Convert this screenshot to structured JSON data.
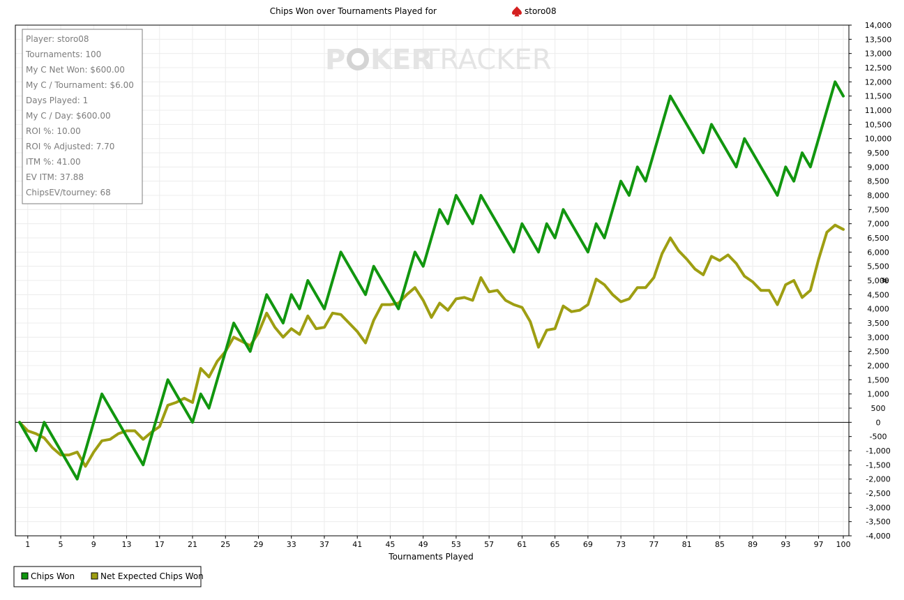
{
  "chart_data": {
    "type": "line",
    "title_prefix": "Chips Won over Tournaments Played for",
    "player_name": "storo08",
    "watermark": {
      "part1": "P",
      "part2": "KER",
      "part3": "TRACKER"
    },
    "xlabel": "Tournaments Played",
    "ylabel": "#",
    "xlim": [
      0,
      100
    ],
    "ylim": [
      -4000,
      14000
    ],
    "y_tick_step": 500,
    "x_ticks": [
      1,
      5,
      9,
      13,
      17,
      21,
      25,
      29,
      33,
      37,
      41,
      45,
      49,
      53,
      57,
      61,
      65,
      69,
      73,
      77,
      81,
      85,
      89,
      93,
      97,
      100
    ],
    "y_tick_labels": [
      "14,000",
      "13,500",
      "13,000",
      "12,500",
      "12,000",
      "11,500",
      "11,000",
      "10,500",
      "10,000",
      "9,500",
      "9,000",
      "8,500",
      "8,000",
      "7,500",
      "7,000",
      "6,500",
      "6,000",
      "5,500",
      "5,000",
      "4,500",
      "4,000",
      "3,500",
      "3,000",
      "2,500",
      "2,000",
      "1,500",
      "1,000",
      "500",
      "0",
      "-500",
      "-1,000",
      "-1,500",
      "-2,000",
      "-2,500",
      "-3,000",
      "-3,500",
      "-4,000"
    ],
    "grid": true,
    "legend_position": "bottom-left",
    "series": [
      {
        "name": "Chips Won",
        "color": "#11960f",
        "points": [
          [
            0,
            0
          ],
          [
            1,
            -500
          ],
          [
            2,
            -1000
          ],
          [
            3,
            0
          ],
          [
            7,
            -2000
          ],
          [
            10,
            1000
          ],
          [
            15,
            -1500
          ],
          [
            18,
            1500
          ],
          [
            21,
            0
          ],
          [
            22,
            1000
          ],
          [
            23,
            500
          ],
          [
            26,
            3500
          ],
          [
            28,
            2500
          ],
          [
            30,
            4500
          ],
          [
            32,
            3500
          ],
          [
            33,
            4500
          ],
          [
            34,
            4000
          ],
          [
            35,
            5000
          ],
          [
            37,
            4000
          ],
          [
            39,
            6000
          ],
          [
            42,
            4500
          ],
          [
            43,
            5500
          ],
          [
            46,
            4000
          ],
          [
            48,
            6000
          ],
          [
            49,
            5500
          ],
          [
            51,
            7500
          ],
          [
            52,
            7000
          ],
          [
            53,
            8000
          ],
          [
            55,
            7000
          ],
          [
            56,
            8000
          ],
          [
            60,
            6000
          ],
          [
            61,
            7000
          ],
          [
            63,
            6000
          ],
          [
            64,
            7000
          ],
          [
            65,
            6500
          ],
          [
            66,
            7500
          ],
          [
            69,
            6000
          ],
          [
            70,
            7000
          ],
          [
            71,
            6500
          ],
          [
            73,
            8500
          ],
          [
            74,
            8000
          ],
          [
            75,
            9000
          ],
          [
            76,
            8500
          ],
          [
            79,
            11500
          ],
          [
            83,
            9500
          ],
          [
            84,
            10500
          ],
          [
            87,
            9000
          ],
          [
            88,
            10000
          ],
          [
            92,
            8000
          ],
          [
            93,
            9000
          ],
          [
            94,
            8500
          ],
          [
            95,
            9500
          ],
          [
            96,
            9000
          ],
          [
            99,
            12000
          ],
          [
            100,
            11500
          ]
        ]
      },
      {
        "name": "Net Expected Chips Won",
        "color": "#9e9e12",
        "points": [
          [
            0,
            0
          ],
          [
            1,
            -300
          ],
          [
            2,
            -400
          ],
          [
            3,
            -550
          ],
          [
            4,
            -900
          ],
          [
            5,
            -1150
          ],
          [
            6,
            -1150
          ],
          [
            7,
            -1050
          ],
          [
            8,
            -1550
          ],
          [
            9,
            -1050
          ],
          [
            10,
            -650
          ],
          [
            11,
            -600
          ],
          [
            12,
            -400
          ],
          [
            13,
            -300
          ],
          [
            14,
            -300
          ],
          [
            15,
            -600
          ],
          [
            16,
            -350
          ],
          [
            17,
            -150
          ],
          [
            18,
            600
          ],
          [
            19,
            700
          ],
          [
            20,
            850
          ],
          [
            21,
            700
          ],
          [
            22,
            1900
          ],
          [
            23,
            1600
          ],
          [
            24,
            2150
          ],
          [
            25,
            2500
          ],
          [
            26,
            3000
          ],
          [
            27,
            2850
          ],
          [
            28,
            2700
          ],
          [
            29,
            3150
          ],
          [
            30,
            3850
          ],
          [
            31,
            3350
          ],
          [
            32,
            3000
          ],
          [
            33,
            3300
          ],
          [
            34,
            3100
          ],
          [
            35,
            3750
          ],
          [
            36,
            3300
          ],
          [
            37,
            3350
          ],
          [
            38,
            3850
          ],
          [
            39,
            3800
          ],
          [
            40,
            3500
          ],
          [
            41,
            3200
          ],
          [
            42,
            2800
          ],
          [
            43,
            3600
          ],
          [
            44,
            4150
          ],
          [
            45,
            4150
          ],
          [
            46,
            4200
          ],
          [
            47,
            4500
          ],
          [
            48,
            4750
          ],
          [
            49,
            4300
          ],
          [
            50,
            3700
          ],
          [
            51,
            4200
          ],
          [
            52,
            3950
          ],
          [
            53,
            4350
          ],
          [
            54,
            4400
          ],
          [
            55,
            4300
          ],
          [
            56,
            5100
          ],
          [
            57,
            4600
          ],
          [
            58,
            4650
          ],
          [
            59,
            4300
          ],
          [
            60,
            4150
          ],
          [
            61,
            4050
          ],
          [
            62,
            3550
          ],
          [
            63,
            2650
          ],
          [
            64,
            3250
          ],
          [
            65,
            3300
          ],
          [
            66,
            4100
          ],
          [
            67,
            3900
          ],
          [
            68,
            3950
          ],
          [
            69,
            4150
          ],
          [
            70,
            5050
          ],
          [
            71,
            4850
          ],
          [
            72,
            4500
          ],
          [
            73,
            4250
          ],
          [
            74,
            4350
          ],
          [
            75,
            4750
          ],
          [
            76,
            4750
          ],
          [
            77,
            5100
          ],
          [
            78,
            5950
          ],
          [
            79,
            6500
          ],
          [
            80,
            6050
          ],
          [
            81,
            5750
          ],
          [
            82,
            5400
          ],
          [
            83,
            5200
          ],
          [
            84,
            5850
          ],
          [
            85,
            5700
          ],
          [
            86,
            5900
          ],
          [
            87,
            5600
          ],
          [
            88,
            5150
          ],
          [
            89,
            4950
          ],
          [
            90,
            4650
          ],
          [
            91,
            4650
          ],
          [
            92,
            4150
          ],
          [
            93,
            4850
          ],
          [
            94,
            5000
          ],
          [
            95,
            4400
          ],
          [
            96,
            4650
          ],
          [
            97,
            5750
          ],
          [
            98,
            6700
          ],
          [
            99,
            6950
          ],
          [
            100,
            6800
          ]
        ]
      }
    ]
  },
  "stats_box": [
    "Player: storo08",
    "Tournaments: 100",
    "My C Net Won: $600.00",
    "My C / Tournament: $6.00",
    "Days Played: 1",
    "My C / Day: $600.00",
    "ROI %: 10.00",
    "ROI % Adjusted: 7.70",
    "ITM %: 41.00",
    "EV ITM: 37.88",
    "ChipsEV/tourney: 68"
  ],
  "colors": {
    "player_icon": "#d42020",
    "watermark": "#e4e4e4",
    "watermark_chip": "#d4d4d4",
    "grid": "#ececec",
    "stats_text": "#7c7c7c"
  }
}
